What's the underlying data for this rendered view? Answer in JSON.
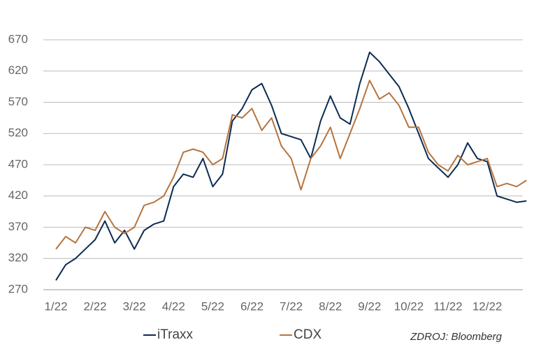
{
  "chart_data": {
    "type": "line",
    "categories": [
      "1/22",
      null,
      null,
      null,
      "2/22",
      null,
      null,
      null,
      "3/22",
      null,
      null,
      null,
      "4/22",
      null,
      null,
      null,
      "5/22",
      null,
      null,
      null,
      "6/22",
      null,
      null,
      null,
      "7/22",
      null,
      null,
      null,
      "8/22",
      null,
      null,
      null,
      "9/22",
      null,
      null,
      null,
      "10/22",
      null,
      null,
      null,
      "11/22",
      null,
      null,
      null,
      "12/22",
      null,
      null,
      null,
      null
    ],
    "series": [
      {
        "name": "iTraxx",
        "color": "#0d2b52",
        "values": [
          285,
          310,
          320,
          335,
          350,
          380,
          345,
          365,
          335,
          365,
          375,
          380,
          435,
          455,
          450,
          480,
          435,
          455,
          540,
          560,
          590,
          600,
          565,
          520,
          515,
          510,
          480,
          540,
          580,
          545,
          535,
          600,
          650,
          635,
          615,
          595,
          560,
          520,
          480,
          465,
          450,
          470,
          505,
          480,
          475,
          420,
          415,
          410,
          412
        ]
      },
      {
        "name": "CDX",
        "color": "#b5743f",
        "values": [
          335,
          355,
          345,
          370,
          365,
          395,
          370,
          360,
          370,
          405,
          410,
          420,
          450,
          490,
          495,
          490,
          470,
          480,
          550,
          545,
          560,
          525,
          545,
          500,
          480,
          430,
          480,
          500,
          530,
          480,
          520,
          560,
          605,
          575,
          585,
          565,
          530,
          530,
          490,
          470,
          460,
          485,
          470,
          475,
          480,
          435,
          440,
          435,
          445
        ]
      }
    ],
    "ylim": [
      270,
      670
    ],
    "yticks": [
      270,
      320,
      370,
      420,
      470,
      520,
      570,
      620,
      670
    ],
    "grid": true,
    "source": "ZDROJ: Bloomberg"
  }
}
